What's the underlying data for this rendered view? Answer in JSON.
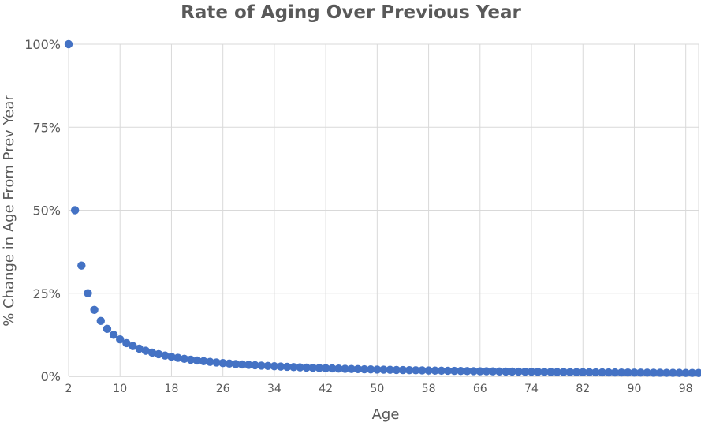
{
  "chart_data": {
    "type": "scatter",
    "title": "Rate of Aging Over Previous Year",
    "xlabel": "Age",
    "ylabel": "% Change in Age From Prev Year",
    "xlim": [
      2,
      100
    ],
    "ylim": [
      0,
      1
    ],
    "x_ticks": [
      2,
      10,
      18,
      26,
      34,
      42,
      50,
      58,
      66,
      74,
      82,
      90,
      98
    ],
    "y_ticks": [
      {
        "value": 0,
        "label": "0%"
      },
      {
        "value": 0.25,
        "label": "25%"
      },
      {
        "value": 0.5,
        "label": "50%"
      },
      {
        "value": 0.75,
        "label": "75%"
      },
      {
        "value": 1,
        "label": "100%"
      }
    ],
    "grid": true,
    "legend": "none",
    "series": [
      {
        "color": "#4472C4",
        "points": [
          [
            2,
            1.0
          ],
          [
            3,
            0.5
          ],
          [
            4,
            0.3333
          ],
          [
            5,
            0.25
          ],
          [
            6,
            0.2
          ],
          [
            7,
            0.1667
          ],
          [
            8,
            0.1429
          ],
          [
            9,
            0.125
          ],
          [
            10,
            0.1111
          ],
          [
            11,
            0.1
          ],
          [
            12,
            0.0909
          ],
          [
            13,
            0.0833
          ],
          [
            14,
            0.0769
          ],
          [
            15,
            0.0714
          ],
          [
            16,
            0.0667
          ],
          [
            17,
            0.0625
          ],
          [
            18,
            0.0588
          ],
          [
            19,
            0.0556
          ],
          [
            20,
            0.0526
          ],
          [
            21,
            0.05
          ],
          [
            22,
            0.0476
          ],
          [
            23,
            0.0455
          ],
          [
            24,
            0.0435
          ],
          [
            25,
            0.0417
          ],
          [
            26,
            0.04
          ],
          [
            27,
            0.0385
          ],
          [
            28,
            0.037
          ],
          [
            29,
            0.0357
          ],
          [
            30,
            0.0345
          ],
          [
            31,
            0.0333
          ],
          [
            32,
            0.0323
          ],
          [
            33,
            0.0313
          ],
          [
            34,
            0.0303
          ],
          [
            35,
            0.0294
          ],
          [
            36,
            0.0286
          ],
          [
            37,
            0.0278
          ],
          [
            38,
            0.027
          ],
          [
            39,
            0.0263
          ],
          [
            40,
            0.0256
          ],
          [
            41,
            0.025
          ],
          [
            42,
            0.0244
          ],
          [
            43,
            0.0238
          ],
          [
            44,
            0.0233
          ],
          [
            45,
            0.0227
          ],
          [
            46,
            0.0222
          ],
          [
            47,
            0.0217
          ],
          [
            48,
            0.0213
          ],
          [
            49,
            0.0208
          ],
          [
            50,
            0.0204
          ],
          [
            51,
            0.02
          ],
          [
            52,
            0.0196
          ],
          [
            53,
            0.0192
          ],
          [
            54,
            0.0189
          ],
          [
            55,
            0.0185
          ],
          [
            56,
            0.0182
          ],
          [
            57,
            0.0179
          ],
          [
            58,
            0.0175
          ],
          [
            59,
            0.0172
          ],
          [
            60,
            0.0169
          ],
          [
            61,
            0.0167
          ],
          [
            62,
            0.0164
          ],
          [
            63,
            0.0161
          ],
          [
            64,
            0.0159
          ],
          [
            65,
            0.0156
          ],
          [
            66,
            0.0154
          ],
          [
            67,
            0.0152
          ],
          [
            68,
            0.0149
          ],
          [
            69,
            0.0147
          ],
          [
            70,
            0.0145
          ],
          [
            71,
            0.0143
          ],
          [
            72,
            0.0141
          ],
          [
            73,
            0.0139
          ],
          [
            74,
            0.0137
          ],
          [
            75,
            0.0135
          ],
          [
            76,
            0.0133
          ],
          [
            77,
            0.0132
          ],
          [
            78,
            0.013
          ],
          [
            79,
            0.0128
          ],
          [
            80,
            0.0127
          ],
          [
            81,
            0.0125
          ],
          [
            82,
            0.0123
          ],
          [
            83,
            0.0122
          ],
          [
            84,
            0.012
          ],
          [
            85,
            0.0119
          ],
          [
            86,
            0.0118
          ],
          [
            87,
            0.0116
          ],
          [
            88,
            0.0115
          ],
          [
            89,
            0.0114
          ],
          [
            90,
            0.0112
          ],
          [
            91,
            0.0111
          ],
          [
            92,
            0.011
          ],
          [
            93,
            0.0109
          ],
          [
            94,
            0.0108
          ],
          [
            95,
            0.0106
          ],
          [
            96,
            0.0105
          ],
          [
            97,
            0.0104
          ],
          [
            98,
            0.0103
          ],
          [
            99,
            0.0102
          ],
          [
            100,
            0.0101
          ]
        ]
      }
    ]
  }
}
